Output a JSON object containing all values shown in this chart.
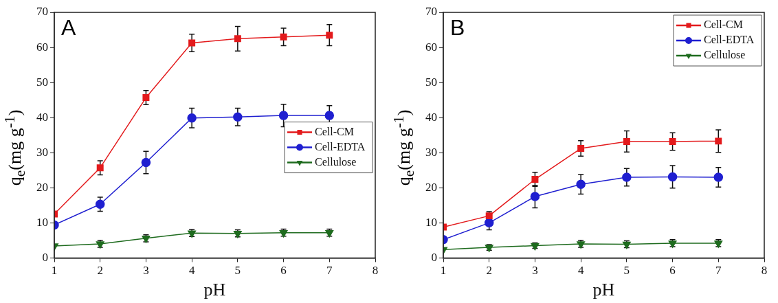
{
  "chart_data": [
    {
      "type": "line",
      "annotations": [
        "A"
      ],
      "xlabel": "pH",
      "ylabel": "q$_{e}$(mg g$^{-1}$)",
      "x": [
        1,
        2,
        3,
        4,
        5,
        6,
        7
      ],
      "xlim": [
        1,
        8
      ],
      "xticks": [
        1,
        2,
        3,
        4,
        5,
        6,
        7,
        8
      ],
      "ylim": [
        0,
        70
      ],
      "yticks": [
        0,
        10,
        20,
        30,
        40,
        50,
        60,
        70
      ],
      "grid": false,
      "legend": "right",
      "series": [
        {
          "name": "Cell-CM",
          "color": "#e31a1c",
          "marker": "square",
          "values": [
            12.5,
            25.7,
            45.7,
            61.3,
            62.5,
            63.0,
            63.5
          ],
          "errors": [
            null,
            2,
            2,
            2.5,
            3.5,
            2.5,
            3
          ]
        },
        {
          "name": "Cell-EDTA",
          "color": "#1f1fd0",
          "marker": "circle",
          "values": [
            9.4,
            15.3,
            27.2,
            39.9,
            40.2,
            40.6,
            40.6
          ],
          "errors": [
            null,
            2,
            3.2,
            2.8,
            2.5,
            3.2,
            2.8
          ]
        },
        {
          "name": "Cellulose",
          "color": "#1e6b1e",
          "marker": "triangle",
          "values": [
            3.4,
            4.0,
            5.6,
            7.1,
            7.0,
            7.2,
            7.2
          ],
          "errors": [
            null,
            1,
            1,
            1,
            1,
            1,
            1
          ]
        }
      ]
    },
    {
      "type": "line",
      "annotations": [
        "B"
      ],
      "xlabel": "pH",
      "ylabel": "q$_{e}$(mg g$^{-1}$)",
      "x": [
        1,
        2,
        3,
        4,
        5,
        6,
        7
      ],
      "xlim": [
        1,
        8
      ],
      "xticks": [
        1,
        2,
        3,
        4,
        5,
        6,
        7,
        8
      ],
      "ylim": [
        0,
        70
      ],
      "yticks": [
        0,
        10,
        20,
        30,
        40,
        50,
        60,
        70
      ],
      "grid": false,
      "legend": "top right",
      "series": [
        {
          "name": "Cell-CM",
          "color": "#e31a1c",
          "marker": "square",
          "values": [
            8.8,
            12.0,
            22.4,
            31.2,
            33.2,
            33.2,
            33.3
          ],
          "errors": [
            null,
            1.2,
            2,
            2.2,
            3,
            2.5,
            3.2
          ]
        },
        {
          "name": "Cell-EDTA",
          "color": "#1f1fd0",
          "marker": "circle",
          "values": [
            5.2,
            10.0,
            17.5,
            21.0,
            23.0,
            23.1,
            23.0
          ],
          "errors": [
            null,
            2,
            3.2,
            2.8,
            2.5,
            3.2,
            2.8
          ]
        },
        {
          "name": "Cellulose",
          "color": "#1e6b1e",
          "marker": "triangle",
          "values": [
            2.4,
            3.0,
            3.5,
            4.0,
            3.9,
            4.2,
            4.2
          ],
          "errors": [
            null,
            0.8,
            0.8,
            1,
            1,
            1,
            1
          ]
        }
      ]
    }
  ]
}
